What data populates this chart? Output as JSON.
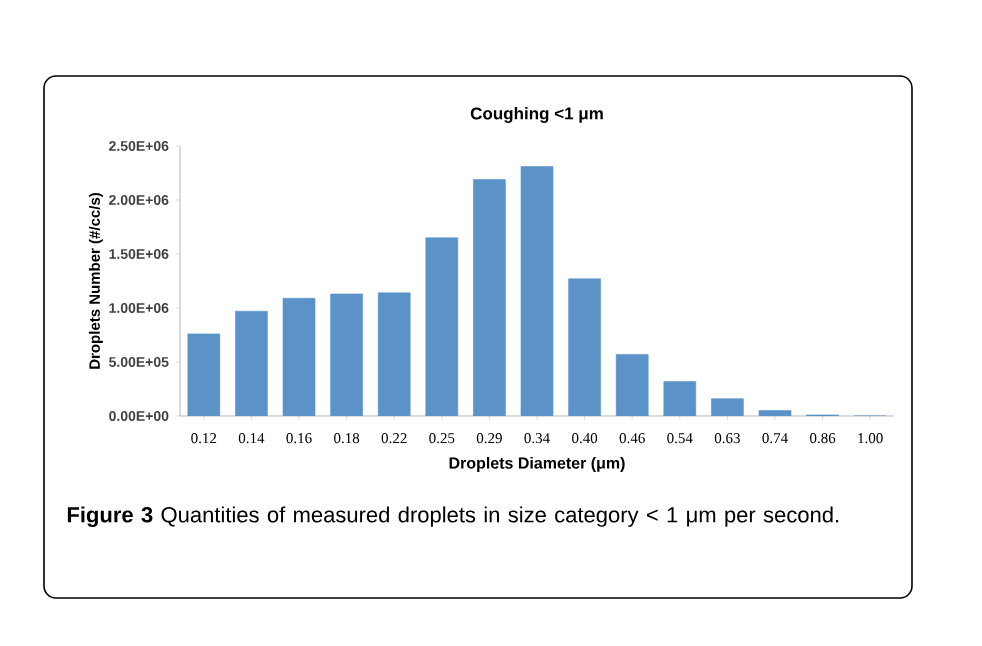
{
  "chart_data": {
    "type": "bar",
    "title": "Coughing <1 μm",
    "xlabel": "Droplets Diameter (μm)",
    "ylabel": "Droplets Number (#/cc/s)",
    "categories": [
      "0.12",
      "0.14",
      "0.16",
      "0.18",
      "0.22",
      "0.25",
      "0.29",
      "0.34",
      "0.40",
      "0.46",
      "0.54",
      "0.63",
      "0.74",
      "0.86",
      "1.00"
    ],
    "values": [
      760000,
      970000,
      1090000,
      1130000,
      1140000,
      1650000,
      2190000,
      2310000,
      1270000,
      570000,
      320000,
      160000,
      50000,
      10000,
      0
    ],
    "color": "#5b93c8",
    "ylim": [
      0,
      2500000
    ],
    "yticks": [
      {
        "value": 0,
        "label": "0.00E+00"
      },
      {
        "value": 500000,
        "label": "5.00E+05"
      },
      {
        "value": 1000000,
        "label": "1.00E+06"
      },
      {
        "value": 1500000,
        "label": "1.50E+06"
      },
      {
        "value": 2000000,
        "label": "2.00E+06"
      },
      {
        "value": 2500000,
        "label": "2.50E+06"
      }
    ],
    "annotations": [
      "**Figure 3** Quantities of measured droplets in size category < 1 μm per second."
    ]
  }
}
